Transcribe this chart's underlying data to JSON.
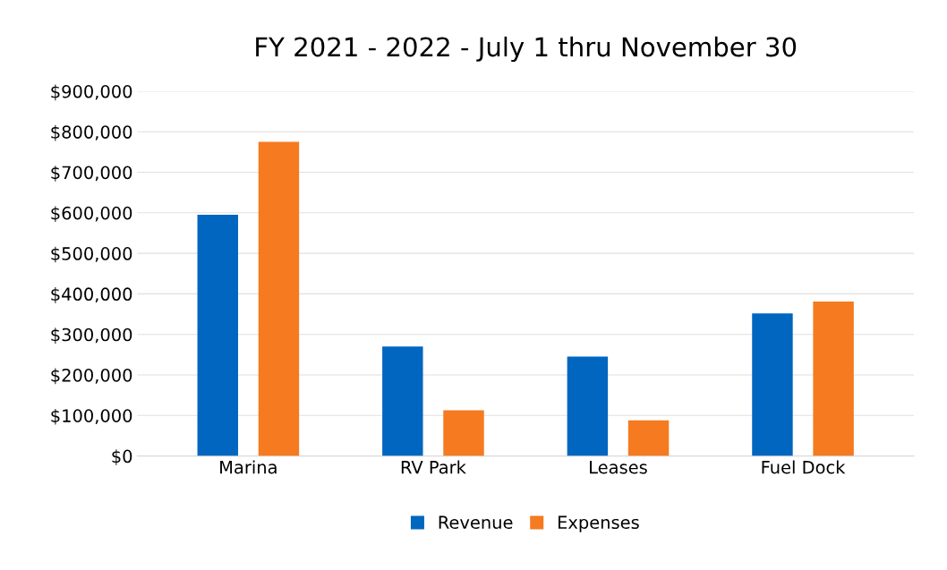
{
  "chart_data": {
    "type": "bar",
    "title": "FY 2021 - 2022 - July 1 thru November 30",
    "categories": [
      "Marina",
      "RV Park",
      "Leases",
      "Fuel Dock"
    ],
    "series": [
      {
        "name": "Revenue",
        "color": "#0066c0",
        "values": [
          595000,
          270000,
          245000,
          352000
        ]
      },
      {
        "name": "Expenses",
        "color": "#f57a20",
        "values": [
          775000,
          113000,
          88000,
          381000
        ]
      }
    ],
    "ylim": [
      0,
      900000
    ],
    "yticks": [
      {
        "value": 0,
        "label": "$0"
      },
      {
        "value": 100000,
        "label": "$100,000"
      },
      {
        "value": 200000,
        "label": "$200,000"
      },
      {
        "value": 300000,
        "label": "$300,000"
      },
      {
        "value": 400000,
        "label": "$400,000"
      },
      {
        "value": 500000,
        "label": "$500,000"
      },
      {
        "value": 600000,
        "label": "$600,000"
      },
      {
        "value": 700000,
        "label": "$700,000"
      },
      {
        "value": 800000,
        "label": "$800,000"
      },
      {
        "value": 900000,
        "label": "$900,000"
      }
    ],
    "grid": "y",
    "legend": "bottom"
  }
}
